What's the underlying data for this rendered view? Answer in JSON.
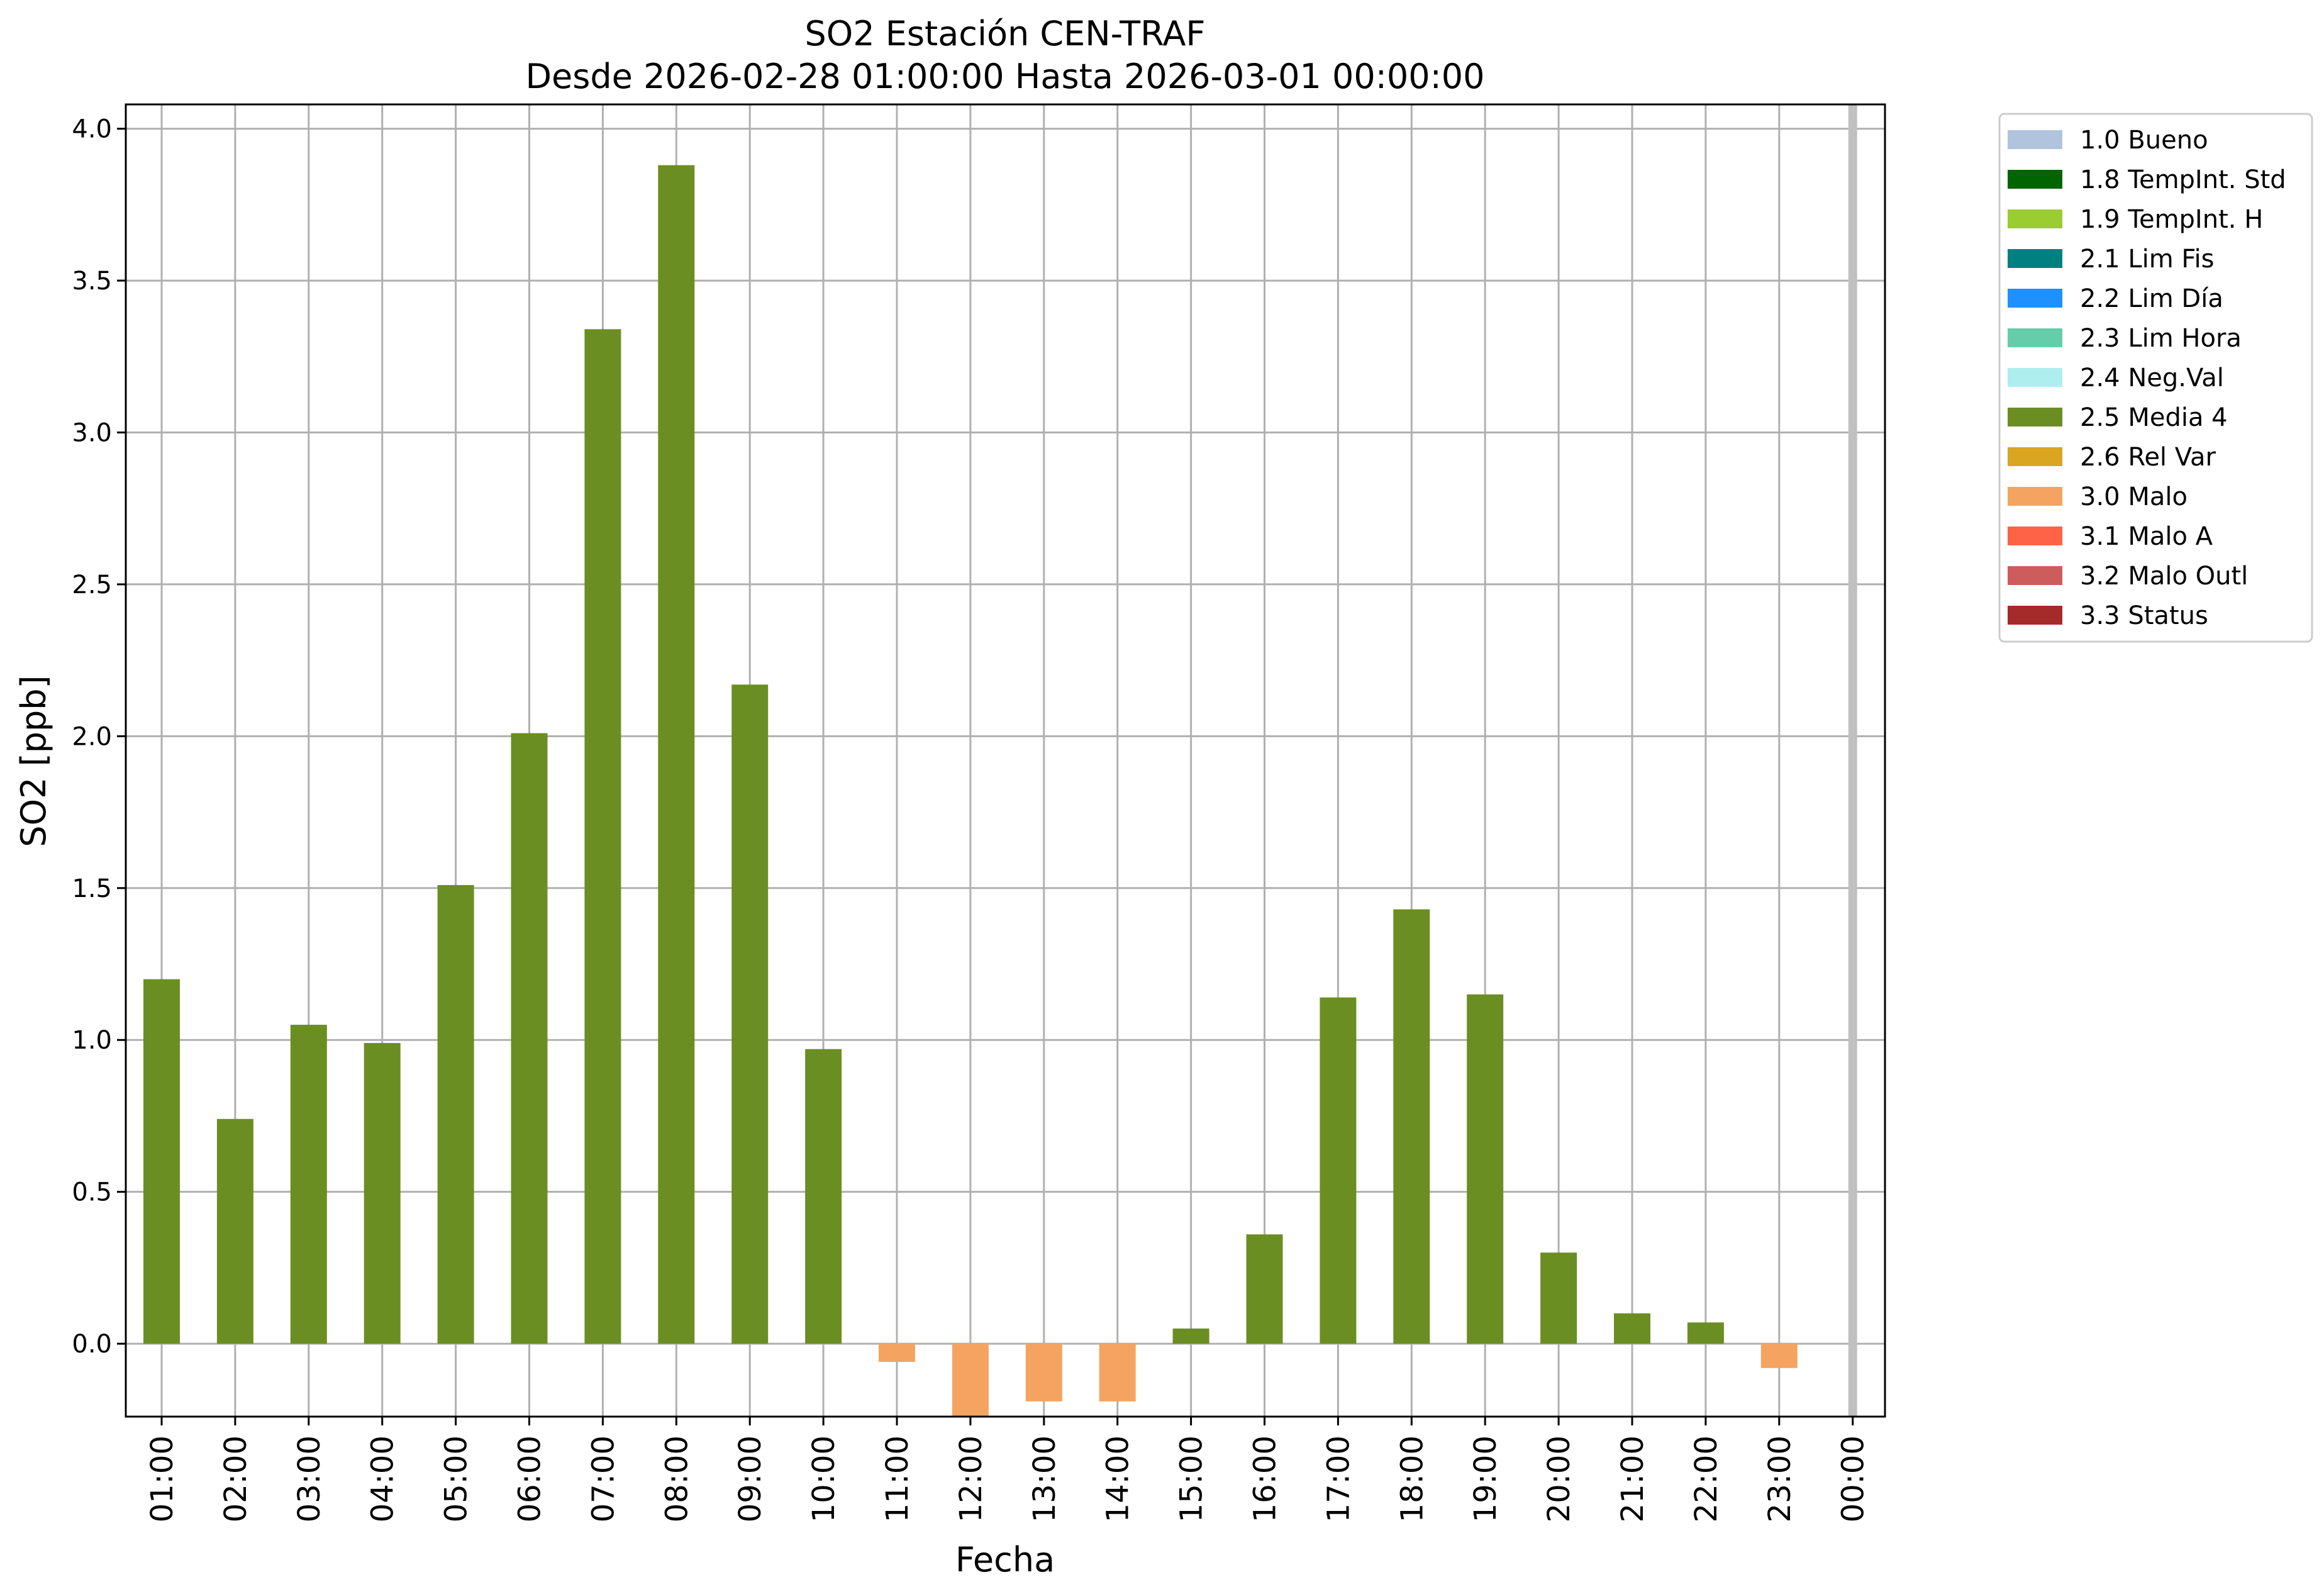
{
  "chart_data": {
    "type": "bar",
    "title": [
      "SO2 Estación CEN-TRAF",
      "Desde 2026-02-28 01:00:00 Hasta 2026-03-01 00:00:00"
    ],
    "xlabel": "Fecha",
    "ylabel": "SO2 [ppb]",
    "ylim": [
      -0.24,
      4.08
    ],
    "yticks": [
      0.0,
      0.5,
      1.0,
      1.5,
      2.0,
      2.5,
      3.0,
      3.5,
      4.0
    ],
    "ytick_labels": [
      "0.0",
      "0.5",
      "1.0",
      "1.5",
      "2.0",
      "2.5",
      "3.0",
      "3.5",
      "4.0"
    ],
    "grid": true,
    "legend_position": "outside-top-right",
    "categories": [
      "01:00",
      "02:00",
      "03:00",
      "04:00",
      "05:00",
      "06:00",
      "07:00",
      "08:00",
      "09:00",
      "10:00",
      "11:00",
      "12:00",
      "13:00",
      "14:00",
      "15:00",
      "16:00",
      "17:00",
      "18:00",
      "19:00",
      "20:00",
      "21:00",
      "22:00",
      "23:00",
      "00:00"
    ],
    "values": [
      1.2,
      0.74,
      1.05,
      0.99,
      1.51,
      2.01,
      3.34,
      3.88,
      2.17,
      0.97,
      -0.06,
      -0.24,
      -0.19,
      -0.19,
      0.05,
      0.36,
      1.14,
      1.43,
      1.15,
      0.3,
      0.1,
      0.07,
      -0.08,
      null
    ],
    "flags": [
      "2.5 Media 4",
      "2.5 Media 4",
      "2.5 Media 4",
      "2.5 Media 4",
      "2.5 Media 4",
      "2.5 Media 4",
      "2.5 Media 4",
      "2.5 Media 4",
      "2.5 Media 4",
      "2.5 Media 4",
      "3.0 Malo",
      "3.0 Malo",
      "3.0 Malo",
      "3.0 Malo",
      "2.5 Media 4",
      "2.5 Media 4",
      "2.5 Media 4",
      "2.5 Media 4",
      "2.5 Media 4",
      "2.5 Media 4",
      "2.5 Media 4",
      "2.5 Media 4",
      "3.0 Malo",
      null
    ],
    "marker_category": "00:00",
    "legend": [
      {
        "label": "1.0 Bueno",
        "color": "#b0c4de"
      },
      {
        "label": "1.8 TempInt. Std",
        "color": "#006400"
      },
      {
        "label": "1.9 TempInt. H",
        "color": "#9acd32"
      },
      {
        "label": "2.1 Lim Fis",
        "color": "#008080"
      },
      {
        "label": "2.2 Lim Día",
        "color": "#1e90ff"
      },
      {
        "label": "2.3 Lim Hora",
        "color": "#66cdaa"
      },
      {
        "label": "2.4 Neg.Val",
        "color": "#afeeee"
      },
      {
        "label": "2.5 Media 4",
        "color": "#6b8e23"
      },
      {
        "label": "2.6 Rel Var",
        "color": "#daa520"
      },
      {
        "label": "3.0 Malo",
        "color": "#f4a460"
      },
      {
        "label": "3.1 Malo A",
        "color": "#ff6347"
      },
      {
        "label": "3.2 Malo Outl",
        "color": "#cd5c5c"
      },
      {
        "label": "3.3 Status",
        "color": "#a52a2a"
      }
    ]
  }
}
